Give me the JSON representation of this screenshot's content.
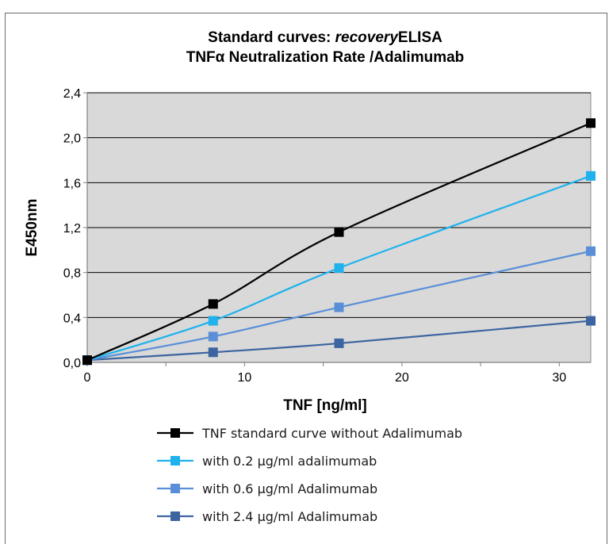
{
  "chart_data": {
    "type": "line",
    "title_line1_prefix": "Standard curves: ",
    "title_line1_italic": "recovery",
    "title_line1_suffix": "ELISA",
    "title_line2": "TNFα Neutralization Rate /Adalimumab",
    "xlabel": "TNF [ng/ml]",
    "ylabel": "E450nm",
    "xlim": [
      0,
      32
    ],
    "ylim": [
      0,
      2.4
    ],
    "xticks": [
      0,
      10,
      20,
      30
    ],
    "yticks": [
      0.0,
      0.4,
      0.8,
      1.2,
      1.6,
      2.0,
      2.4
    ],
    "ytick_labels": [
      "0,0",
      "0,4",
      "0,8",
      "1,2",
      "1,6",
      "2,0",
      "2,4"
    ],
    "xtick_labels": [
      "0",
      "10",
      "20",
      "30"
    ],
    "grid": "horizontal",
    "plot_background": "#d9d9d9",
    "legend_position": "bottom",
    "x": [
      0,
      8,
      16,
      32
    ],
    "series": [
      {
        "name": "TNF standard curve without Adalimumab",
        "color": "#000000",
        "values": [
          0.02,
          0.52,
          1.16,
          2.13
        ]
      },
      {
        "name": "with 0.2 µg/ml adalimumab",
        "color": "#1fb2ec",
        "values": [
          0.02,
          0.37,
          0.84,
          1.66
        ]
      },
      {
        "name": "with 0.6 µg/ml Adalimumab",
        "color": "#5a8fd8",
        "values": [
          0.02,
          0.23,
          0.49,
          0.99
        ]
      },
      {
        "name": "with 2.4 µg/ml Adalimumab",
        "color": "#3c64a0",
        "values": [
          0.02,
          0.09,
          0.17,
          0.37
        ]
      }
    ]
  }
}
